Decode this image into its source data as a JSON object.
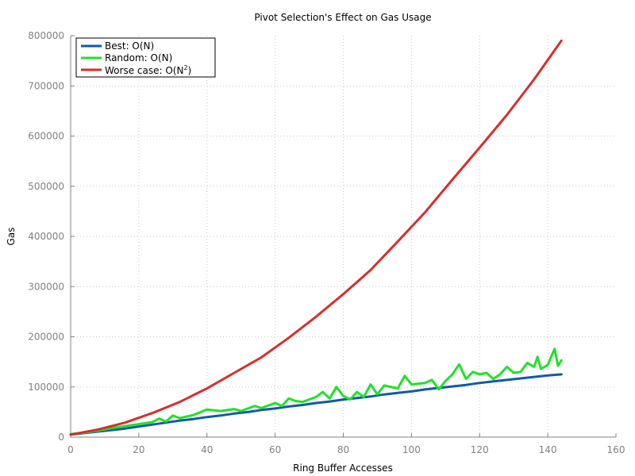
{
  "chart_data": {
    "type": "line",
    "title": "Pivot Selection's Effect on Gas Usage",
    "xlabel": "Ring Buffer Accesses",
    "ylabel": "Gas",
    "xlim": [
      0,
      160
    ],
    "ylim": [
      0,
      800000
    ],
    "x_ticks": [
      "0",
      "20",
      "40",
      "60",
      "80",
      "100",
      "120",
      "140",
      "160"
    ],
    "y_ticks": [
      "0",
      "100000",
      "200000",
      "300000",
      "400000",
      "500000",
      "600000",
      "700000",
      "800000"
    ],
    "grid": true,
    "legend_position": "top-left",
    "series": [
      {
        "name": "Best: O(N)",
        "legend_main": "Best: O(N)",
        "legend_sup": "",
        "legend_tail": "",
        "color": "#0f5aa6",
        "x": [
          0,
          4,
          8,
          12,
          16,
          20,
          24,
          28,
          32,
          36,
          40,
          44,
          48,
          52,
          56,
          60,
          64,
          68,
          72,
          76,
          80,
          84,
          88,
          92,
          96,
          100,
          104,
          108,
          112,
          116,
          120,
          124,
          128,
          132,
          136,
          140,
          144
        ],
        "y": [
          5000,
          8000,
          11000,
          14000,
          17000,
          21000,
          25000,
          29000,
          33000,
          36000,
          40000,
          43000,
          47000,
          50000,
          54000,
          57000,
          61000,
          64000,
          68000,
          71000,
          75000,
          78000,
          81000,
          85000,
          88000,
          91000,
          95000,
          98000,
          101000,
          104000,
          108000,
          111000,
          114000,
          117000,
          120000,
          123000,
          125000
        ]
      },
      {
        "name": "Random: O(N)",
        "legend_main": "Random: O(N)",
        "legend_sup": "",
        "legend_tail": "",
        "color": "#22e02a",
        "x": [
          0,
          4,
          8,
          12,
          16,
          20,
          24,
          26,
          28,
          30,
          32,
          36,
          40,
          44,
          48,
          50,
          52,
          54,
          56,
          60,
          62,
          64,
          66,
          68,
          72,
          74,
          76,
          78,
          80,
          82,
          84,
          86,
          88,
          90,
          92,
          96,
          98,
          100,
          104,
          106,
          108,
          110,
          112,
          114,
          116,
          118,
          120,
          122,
          124,
          126,
          128,
          130,
          132,
          134,
          136,
          137,
          138,
          140,
          142,
          143,
          144
        ],
        "y": [
          6000,
          9000,
          13000,
          18000,
          22000,
          26000,
          30000,
          37000,
          31000,
          43000,
          38000,
          44000,
          55000,
          52000,
          56000,
          52000,
          57000,
          62000,
          58000,
          68000,
          62000,
          77000,
          72000,
          70000,
          80000,
          90000,
          77000,
          100000,
          82000,
          75000,
          90000,
          80000,
          105000,
          85000,
          103000,
          97000,
          122000,
          105000,
          108000,
          114000,
          95000,
          112000,
          125000,
          145000,
          116000,
          130000,
          125000,
          128000,
          116000,
          125000,
          140000,
          128000,
          130000,
          148000,
          140000,
          160000,
          136000,
          144000,
          176000,
          142000,
          153000
        ]
      },
      {
        "name": "Worse case: O(N^2)",
        "legend_main": "Worse case: O(N",
        "legend_sup": "2",
        "legend_tail": ")",
        "color": "#d62e2e",
        "x": [
          0,
          8,
          16,
          24,
          32,
          40,
          48,
          56,
          64,
          72,
          80,
          88,
          96,
          104,
          112,
          120,
          128,
          136,
          144
        ],
        "y": [
          5000,
          15000,
          29000,
          48000,
          70000,
          97000,
          128000,
          159000,
          198000,
          240000,
          285000,
          333000,
          390000,
          448000,
          513000,
          577000,
          642000,
          713000,
          790000
        ]
      }
    ]
  }
}
